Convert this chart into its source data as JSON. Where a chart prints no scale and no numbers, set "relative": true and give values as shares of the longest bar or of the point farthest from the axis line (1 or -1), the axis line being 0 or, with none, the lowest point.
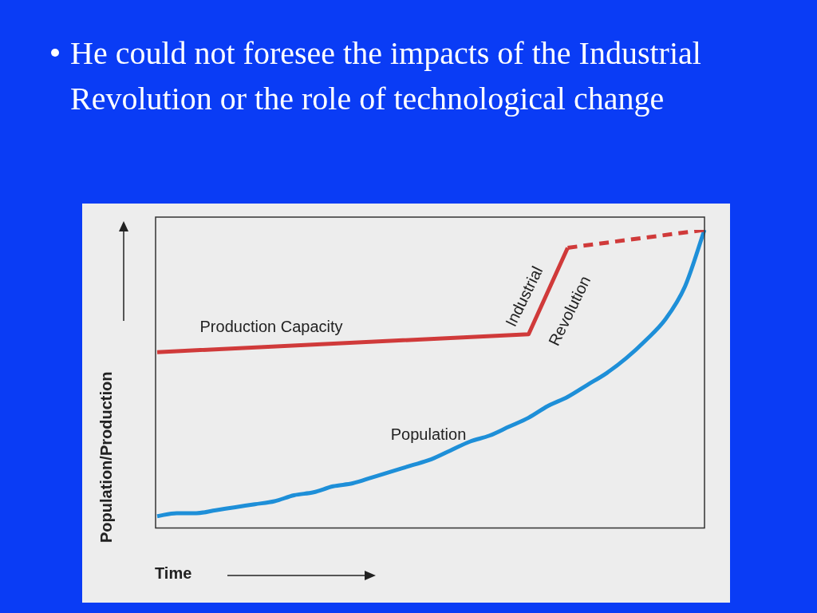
{
  "chart_data": {
    "type": "line",
    "title": "He could not foresee the impacts of the Industrial Revolution or the role of technological change",
    "xlabel": "Time",
    "ylabel": "Population/Production",
    "relative": true,
    "legend": false,
    "grid": false,
    "marker": "none",
    "annotations": [
      "Production Capacity",
      "Population",
      "Industrial",
      "Revolution"
    ],
    "categories": [
      null,
      null,
      null,
      null,
      null,
      null,
      null,
      null,
      null,
      null,
      null,
      null,
      null,
      null,
      null,
      null,
      null,
      null,
      null,
      null,
      null,
      null,
      null,
      null,
      null,
      null,
      null,
      null,
      null
    ],
    "series": [
      {
        "color": "#d03a3a",
        "line_style": "solid",
        "values": [
          0.59,
          null,
          null,
          null,
          null,
          null,
          null,
          null,
          null,
          null,
          null,
          null,
          null,
          null,
          null,
          null,
          null,
          null,
          null,
          0.65,
          null,
          0.94,
          null,
          null,
          null,
          null,
          null,
          null,
          null
        ]
      },
      {
        "color": "#d03a3a",
        "line_style": "dashed",
        "values": [
          null,
          null,
          null,
          null,
          null,
          null,
          null,
          null,
          null,
          null,
          null,
          null,
          null,
          null,
          null,
          null,
          null,
          null,
          null,
          null,
          null,
          0.94,
          null,
          null,
          null,
          null,
          null,
          null,
          1.0
        ]
      },
      {
        "color": "#1e8fd8",
        "line_style": "solid",
        "values": [
          0.04,
          0.05,
          0.05,
          0.06,
          0.07,
          0.08,
          0.09,
          0.11,
          0.12,
          0.14,
          0.15,
          0.17,
          0.19,
          0.21,
          0.23,
          0.26,
          0.29,
          0.31,
          0.34,
          0.37,
          0.41,
          0.44,
          0.48,
          0.52,
          0.57,
          0.63,
          0.7,
          0.81,
          1.0
        ]
      }
    ]
  }
}
